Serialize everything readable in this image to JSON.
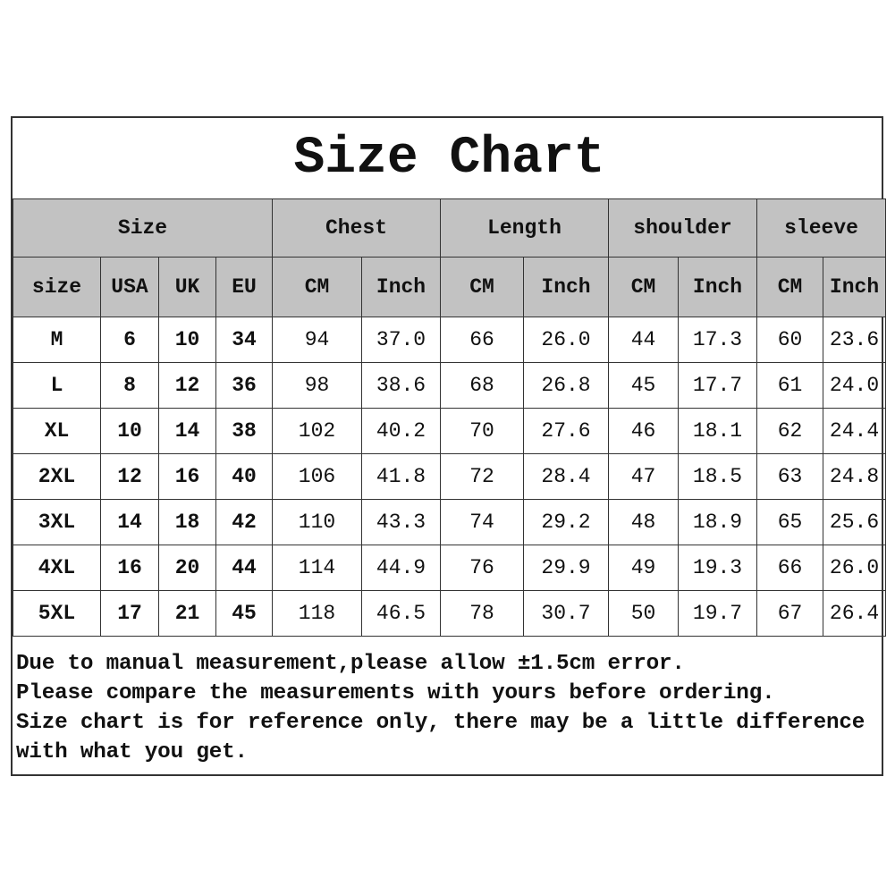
{
  "title": "Size Chart",
  "group_headers": [
    "Size",
    "Chest",
    "Length",
    "shoulder",
    "sleeve"
  ],
  "sub_headers": [
    "size",
    "USA",
    "UK",
    "EU",
    "CM",
    "Inch",
    "CM",
    "Inch",
    "CM",
    "Inch",
    "CM",
    "Inch"
  ],
  "header_bg": "#c2c2c2",
  "rows": [
    [
      "M",
      "6",
      "10",
      "34",
      "94",
      "37.0",
      "66",
      "26.0",
      "44",
      "17.3",
      "60",
      "23.6"
    ],
    [
      "L",
      "8",
      "12",
      "36",
      "98",
      "38.6",
      "68",
      "26.8",
      "45",
      "17.7",
      "61",
      "24.0"
    ],
    [
      "XL",
      "10",
      "14",
      "38",
      "102",
      "40.2",
      "70",
      "27.6",
      "46",
      "18.1",
      "62",
      "24.4"
    ],
    [
      "2XL",
      "12",
      "16",
      "40",
      "106",
      "41.8",
      "72",
      "28.4",
      "47",
      "18.5",
      "63",
      "24.8"
    ],
    [
      "3XL",
      "14",
      "18",
      "42",
      "110",
      "43.3",
      "74",
      "29.2",
      "48",
      "18.9",
      "65",
      "25.6"
    ],
    [
      "4XL",
      "16",
      "20",
      "44",
      "114",
      "44.9",
      "76",
      "29.9",
      "49",
      "19.3",
      "66",
      "26.0"
    ],
    [
      "5XL",
      "17",
      "21",
      "45",
      "118",
      "46.5",
      "78",
      "30.7",
      "50",
      "19.7",
      "67",
      "26.4"
    ]
  ],
  "notes": [
    "Due to manual measurement,please allow ±1.5cm error.",
    "Please compare the measurements with yours before ordering.",
    "Size chart is for reference only, there may be a little difference",
    "with what you get."
  ]
}
